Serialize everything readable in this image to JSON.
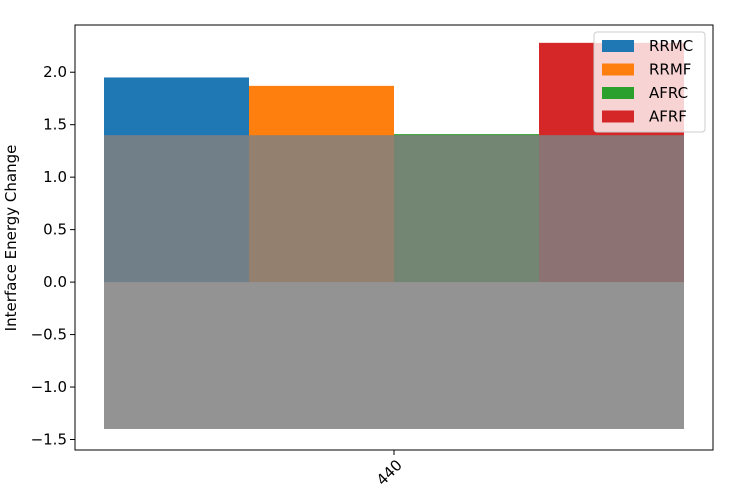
{
  "chart_data": {
    "type": "bar",
    "categories": [
      "440"
    ],
    "series": [
      {
        "name": "RRMC",
        "values": [
          1.95
        ],
        "color": "#1f77b4"
      },
      {
        "name": "RRMF",
        "values": [
          1.87
        ],
        "color": "#ff7f0e"
      },
      {
        "name": "AFRC",
        "values": [
          1.41
        ],
        "color": "#2ca02c"
      },
      {
        "name": "AFRF",
        "values": [
          2.28
        ],
        "color": "#d62728"
      }
    ],
    "band": {
      "range": [
        -1.4,
        1.4
      ],
      "color": "#808080",
      "opacity": 0.85
    },
    "ylabel": "Interface Energy Change",
    "xlabel": "",
    "ylim": [
      -1.6,
      2.45
    ],
    "yticks": [
      -1.5,
      -1.0,
      -0.5,
      0.0,
      0.5,
      1.0,
      1.5,
      2.0
    ],
    "ytick_labels": [
      "−1.5",
      "−1.0",
      "−0.5",
      "0.0",
      "0.5",
      "1.0",
      "1.5",
      "2.0"
    ],
    "legend_placement": "top-right",
    "grid": false
  }
}
